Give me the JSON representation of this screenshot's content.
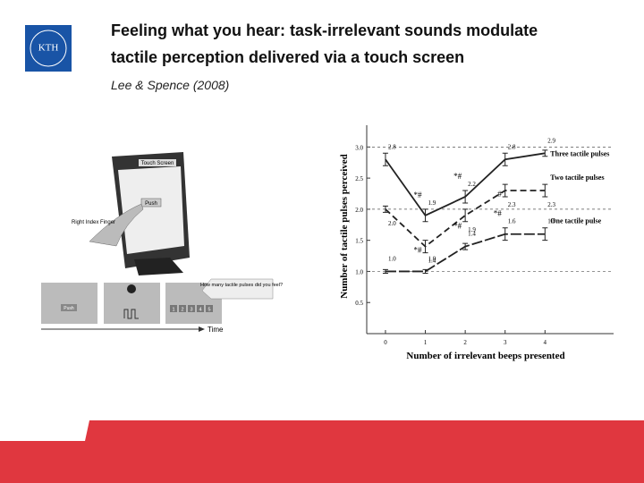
{
  "slide": {
    "title_lines": [
      "Feeling what you hear: task-irrelevant sounds modulate",
      "tactile perception delivered via a touch screen"
    ],
    "citation": "Lee & Spence (2008)",
    "logo": "KTH",
    "figure": {
      "screen_label": "Touch Screen",
      "button": "Push",
      "finger": "Right Index Finger",
      "question": "How many tactile pulses did you feel?",
      "time": "Time",
      "push_small": "Push",
      "choices": [
        "1",
        "2",
        "3",
        "4",
        "5"
      ]
    }
  },
  "chart_data": {
    "type": "line",
    "x_label": "Number of irrelevant beeps presented",
    "y_label": "Number of tactile pulses perceived",
    "x": [
      0,
      1,
      2,
      3,
      4
    ],
    "xlim": [
      -0.47,
      5.72
    ],
    "xticks": [
      0,
      1,
      2,
      3,
      4
    ],
    "ylim": [
      0,
      3.35
    ],
    "yticks": [
      {
        "value": 0.5,
        "label": "0.5"
      },
      {
        "value": 1,
        "label": "1.0"
      },
      {
        "value": 1.5,
        "label": "1.5"
      },
      {
        "value": 2,
        "label": "2.0"
      },
      {
        "value": 2.5,
        "label": "2.5"
      },
      {
        "value": 3,
        "label": "3.0"
      }
    ],
    "reference_lines": [
      1,
      2,
      3
    ],
    "series": [
      {
        "name": "Three tactile pulses",
        "color": "#222222",
        "dash": "none",
        "values": [
          2.8,
          1.9,
          2.2,
          2.8,
          2.9
        ],
        "value_labels": [
          "2.8",
          "1.9",
          "2.2",
          "2.8",
          "2.9"
        ],
        "errors": [
          0.1,
          0.1,
          0.1,
          0.1,
          0.05
        ]
      },
      {
        "name": "Two tactile pulses",
        "color": "#222222",
        "dash": "7 4",
        "values": [
          2.0,
          1.4,
          1.9,
          2.3,
          2.3
        ],
        "value_labels": [
          "2.0",
          "1.4",
          "1.9",
          "2.3",
          "2.3"
        ],
        "errors": [
          0.05,
          0.1,
          0.1,
          0.1,
          0.1
        ]
      },
      {
        "name": "One tactile pulse",
        "color": "#222222",
        "dash": "12 3",
        "values": [
          1.0,
          1.0,
          1.4,
          1.6,
          1.6
        ],
        "value_labels": [
          "1.0",
          "1.0",
          "1.4",
          "1.6",
          "1.6"
        ],
        "errors": [
          0.03,
          0.03,
          0.05,
          0.1,
          0.1
        ]
      }
    ],
    "annotations": [
      {
        "series": 0,
        "point": 1,
        "text": "*#"
      },
      {
        "series": 0,
        "point": 2,
        "text": "*#"
      },
      {
        "series": 1,
        "point": 1,
        "text": "*#"
      },
      {
        "series": 1,
        "point": 3,
        "text": "#"
      },
      {
        "series": 2,
        "point": 2,
        "text": "*#"
      },
      {
        "series": 2,
        "point": 3,
        "text": "*#"
      }
    ]
  }
}
